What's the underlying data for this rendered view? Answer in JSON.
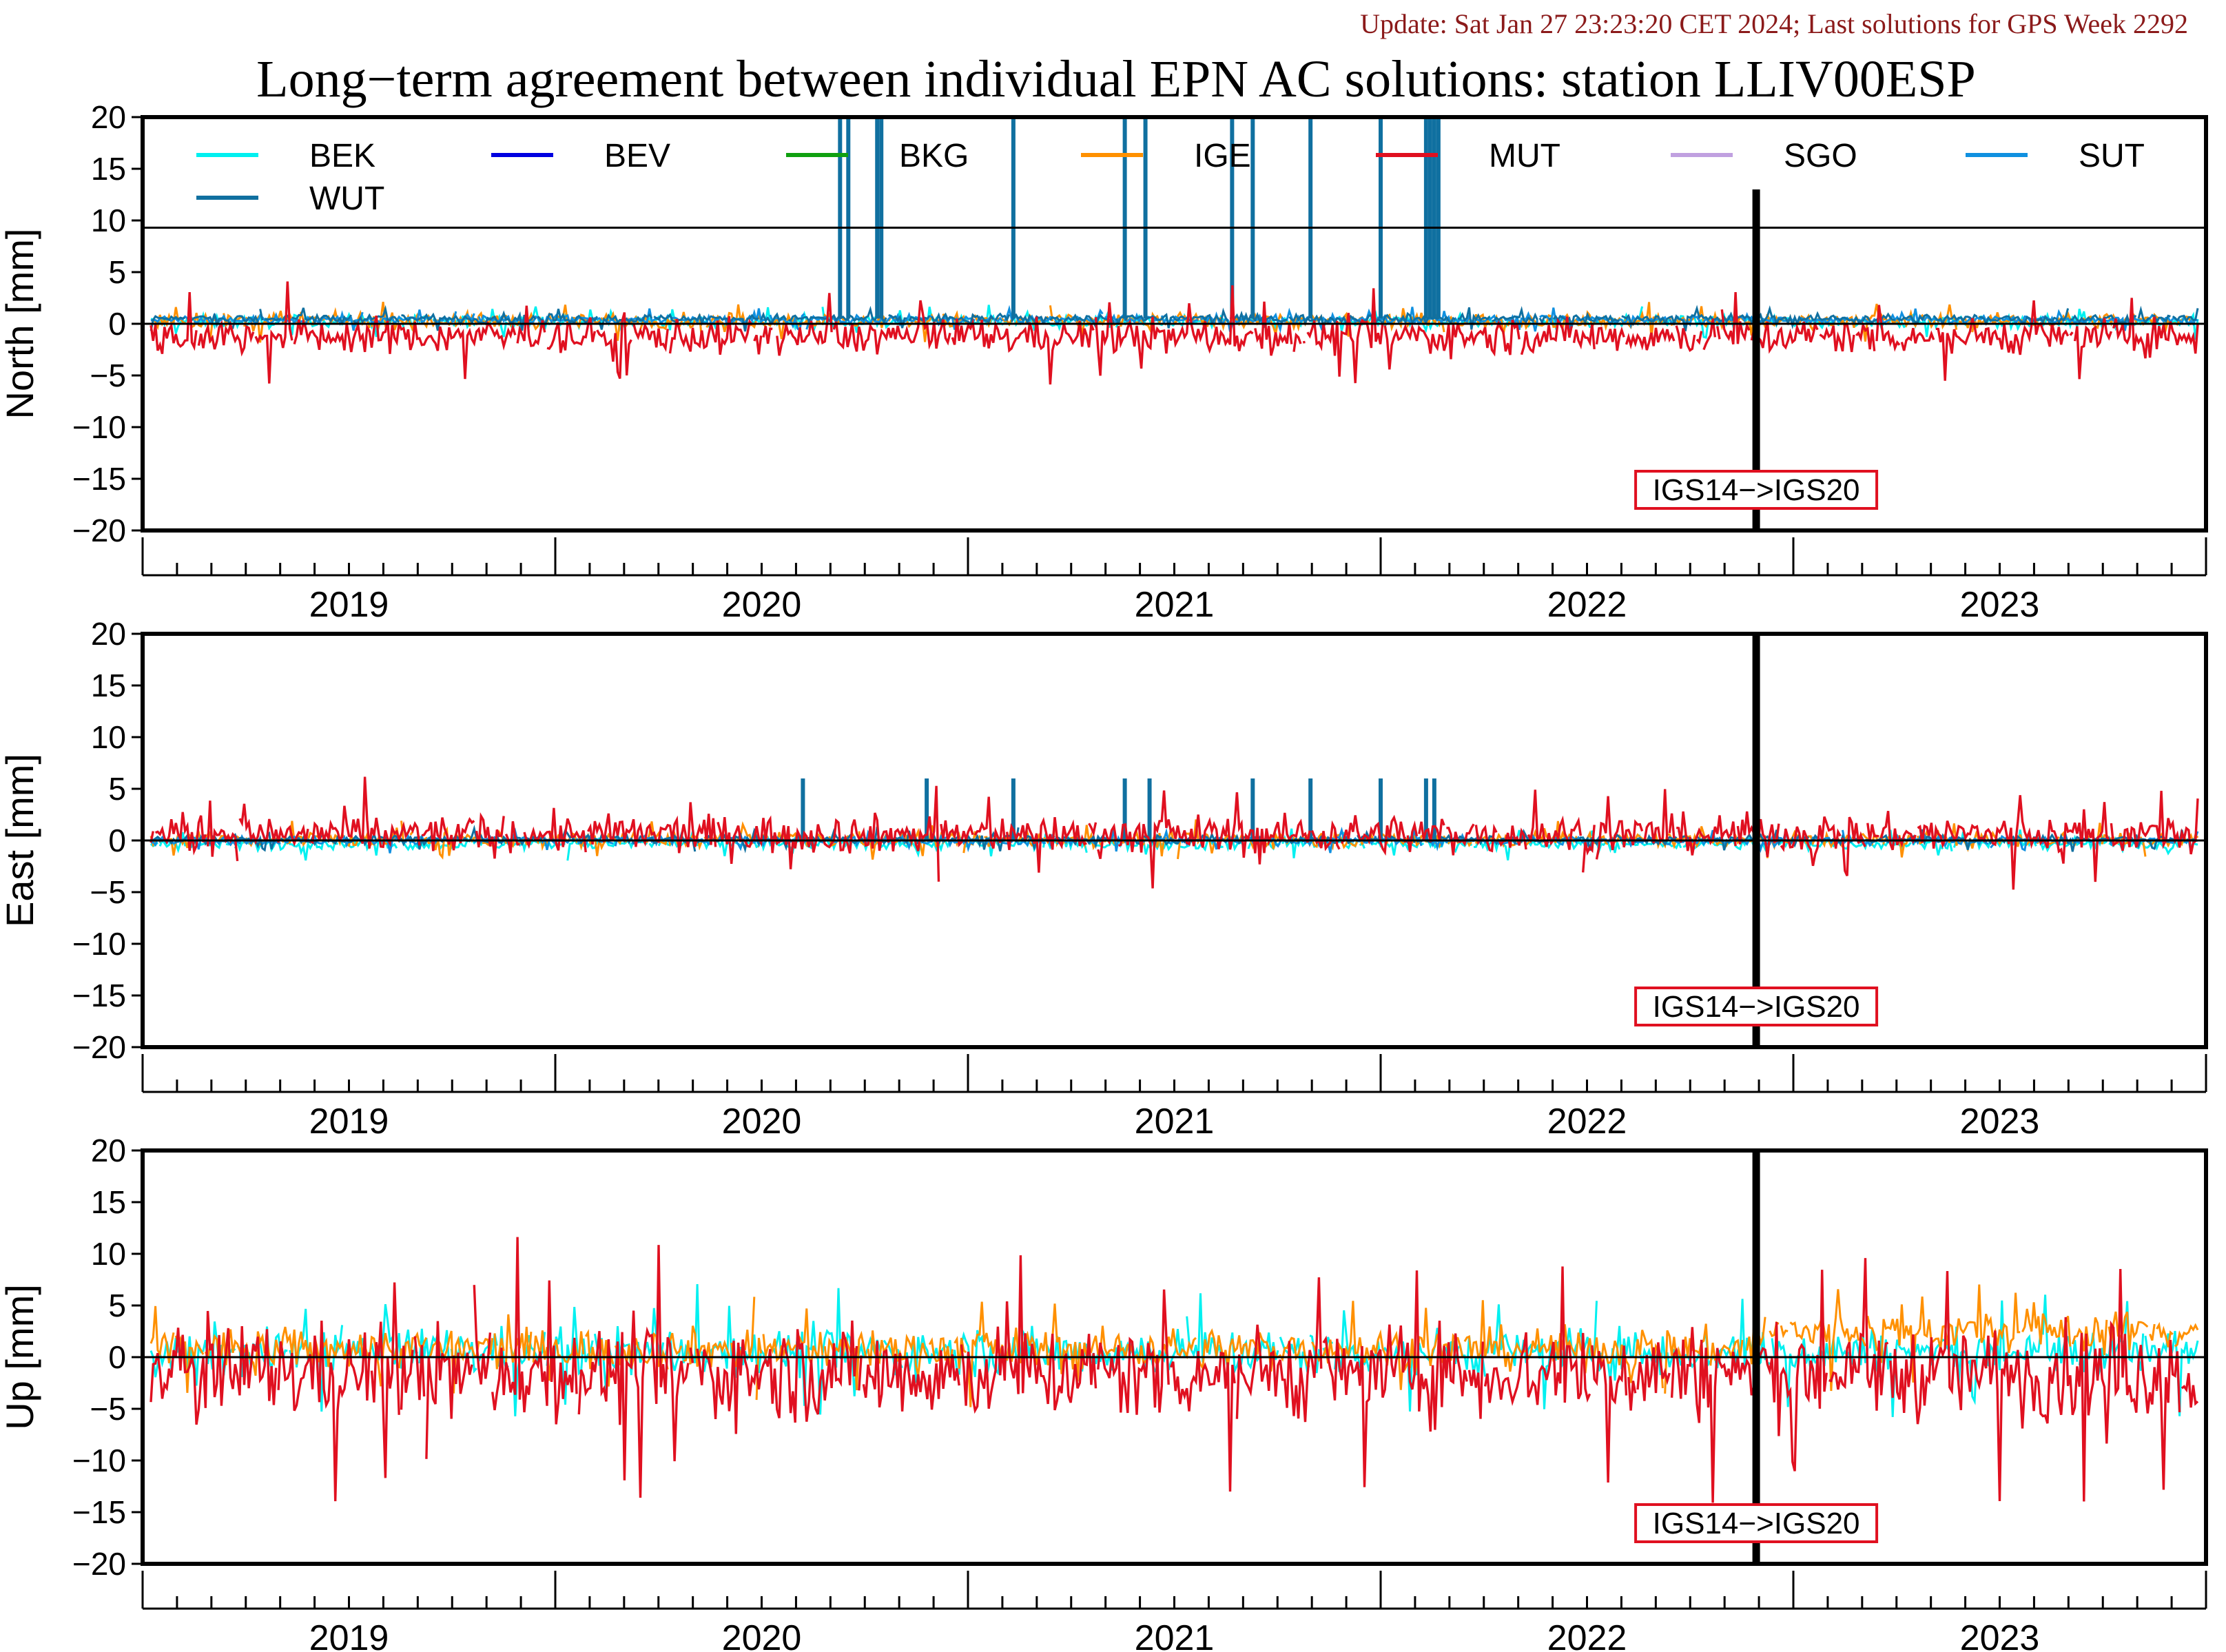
{
  "header": {
    "update_text": "Update: Sat Jan 27 23:23:20 CET 2024; Last solutions for GPS Week 2292",
    "update_color": "#8b1a1a",
    "title": "Long−term agreement between individual EPN AC solutions: station LLIV00ESP"
  },
  "legend": {
    "items": [
      {
        "name": "BEK",
        "color": "#00f0f0"
      },
      {
        "name": "BEV",
        "color": "#0000e0"
      },
      {
        "name": "BKG",
        "color": "#10a010"
      },
      {
        "name": "IGE",
        "color": "#ff9000"
      },
      {
        "name": "MUT",
        "color": "#e01020"
      },
      {
        "name": "SGO",
        "color": "#c0a0e0"
      },
      {
        "name": "SUT",
        "color": "#1090e0"
      },
      {
        "name": "WUT",
        "color": "#1070a0"
      }
    ]
  },
  "annotation": {
    "label": "IGS14−>IGS20",
    "box_color": "#e01020",
    "epoch": 2022.41
  },
  "chart_data": [
    {
      "type": "line",
      "component": "North",
      "ylabel": "North [mm]",
      "ylim": [
        -20,
        20
      ],
      "yticks": [
        "20",
        "15",
        "10",
        "5",
        "0",
        "−5",
        "−10",
        "−15",
        "−20"
      ],
      "xlim": [
        2018.5,
        2023.5
      ],
      "xtick_labels": [
        "2019",
        "2020",
        "2021",
        "2022",
        "2023"
      ],
      "reference_lines": [
        0,
        9.3
      ],
      "series": [
        {
          "name": "BEK",
          "mean": 0.2,
          "spread": 0.4
        },
        {
          "name": "IGE",
          "mean": 0.3,
          "spread": 0.5
        },
        {
          "name": "MUT",
          "mean": -1.2,
          "spread": 1.2
        },
        {
          "name": "SUT",
          "mean": 0.4,
          "spread": 0.3
        },
        {
          "name": "WUT",
          "mean": 0.5,
          "spread": 0.3,
          "spikes_to": 20,
          "spike_epochs": [
            2020.19,
            2020.21,
            2020.28,
            2020.29,
            2020.61,
            2020.88,
            2020.93,
            2021.14,
            2021.19,
            2021.33,
            2021.5,
            2021.61,
            2021.62,
            2021.63,
            2021.64
          ]
        }
      ]
    },
    {
      "type": "line",
      "component": "East",
      "ylabel": "East [mm]",
      "ylim": [
        -20,
        20
      ],
      "yticks": [
        "20",
        "15",
        "10",
        "5",
        "0",
        "−5",
        "−10",
        "−15",
        "−20"
      ],
      "xlim": [
        2018.5,
        2023.5
      ],
      "xtick_labels": [
        "2019",
        "2020",
        "2021",
        "2022",
        "2023"
      ],
      "reference_lines": [
        0
      ],
      "series": [
        {
          "name": "BEK",
          "mean": -0.3,
          "spread": 0.4
        },
        {
          "name": "IGE",
          "mean": 0.1,
          "spread": 0.5
        },
        {
          "name": "MUT",
          "mean": 0.6,
          "spread": 1.3
        },
        {
          "name": "SUT",
          "mean": 0.0,
          "spread": 0.3
        },
        {
          "name": "WUT",
          "mean": 0.1,
          "spread": 0.3,
          "spikes_to": 6,
          "spike_epochs": [
            2020.1,
            2020.4,
            2020.61,
            2020.88,
            2020.94,
            2021.19,
            2021.33,
            2021.5,
            2021.61,
            2021.63
          ]
        }
      ]
    },
    {
      "type": "line",
      "component": "Up",
      "ylabel": "Up [mm]",
      "ylim": [
        -20,
        20
      ],
      "yticks": [
        "20",
        "15",
        "10",
        "5",
        "0",
        "−5",
        "−10",
        "−15",
        "−20"
      ],
      "xlim": [
        2018.5,
        2023.5
      ],
      "xtick_labels": [
        "2019",
        "2020",
        "2021",
        "2022",
        "2023"
      ],
      "reference_lines": [
        0
      ],
      "series": [
        {
          "name": "BEK",
          "mean": 0.5,
          "spread": 1.6
        },
        {
          "name": "IGE",
          "mean": 0.8,
          "spread": 1.4,
          "late_mean": 2.5
        },
        {
          "name": "MUT",
          "mean": -1.5,
          "spread": 3.2
        }
      ]
    }
  ]
}
